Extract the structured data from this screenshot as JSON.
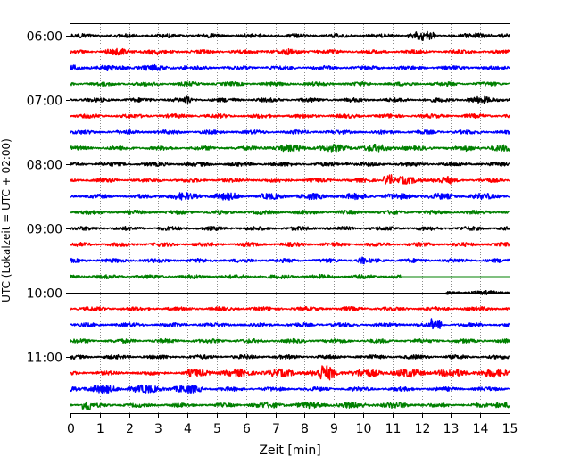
{
  "chart_data": {
    "type": "line",
    "chart_kind": "helicorder",
    "xlabel": "Zeit  [min]",
    "ylabel": "UTC (Lokalzeit = UTC + 02:00)",
    "xlim": [
      0,
      15
    ],
    "x_ticks": [
      0,
      1,
      2,
      3,
      4,
      5,
      6,
      7,
      8,
      9,
      10,
      11,
      12,
      13,
      14,
      15
    ],
    "y_time_ticks": [
      "06:00",
      "07:00",
      "08:00",
      "09:00",
      "10:00",
      "11:00"
    ],
    "grid": "vertical dotted lines at each minute",
    "trace_colors": [
      "#000000",
      "#ff0000",
      "#0000ff",
      "#008000"
    ],
    "rows": [
      {
        "time": "06:00",
        "color": "#000000",
        "x_start": 0,
        "x_end": 15
      },
      {
        "time": "06:15",
        "color": "#ff0000",
        "x_start": 0,
        "x_end": 15
      },
      {
        "time": "06:30",
        "color": "#0000ff",
        "x_start": 0,
        "x_end": 15
      },
      {
        "time": "06:45",
        "color": "#008000",
        "x_start": 0,
        "x_end": 15
      },
      {
        "time": "07:00",
        "color": "#000000",
        "x_start": 0,
        "x_end": 15
      },
      {
        "time": "07:15",
        "color": "#ff0000",
        "x_start": 0,
        "x_end": 15
      },
      {
        "time": "07:30",
        "color": "#0000ff",
        "x_start": 0,
        "x_end": 15
      },
      {
        "time": "07:45",
        "color": "#008000",
        "x_start": 0,
        "x_end": 15
      },
      {
        "time": "08:00",
        "color": "#000000",
        "x_start": 0,
        "x_end": 15
      },
      {
        "time": "08:15",
        "color": "#ff0000",
        "x_start": 0,
        "x_end": 15
      },
      {
        "time": "08:30",
        "color": "#0000ff",
        "x_start": 0,
        "x_end": 15
      },
      {
        "time": "08:45",
        "color": "#008000",
        "x_start": 0,
        "x_end": 15
      },
      {
        "time": "09:00",
        "color": "#000000",
        "x_start": 0,
        "x_end": 15
      },
      {
        "time": "09:15",
        "color": "#ff0000",
        "x_start": 0,
        "x_end": 15
      },
      {
        "time": "09:30",
        "color": "#0000ff",
        "x_start": 0,
        "x_end": 15
      },
      {
        "time": "09:45",
        "color": "#008000",
        "x_start": 0,
        "x_end": 11.3
      },
      {
        "time": "10:00",
        "color": "#000000",
        "x_start": 12.8,
        "x_end": 15
      },
      {
        "time": "10:15",
        "color": "#ff0000",
        "x_start": 0,
        "x_end": 15
      },
      {
        "time": "10:30",
        "color": "#0000ff",
        "x_start": 0,
        "x_end": 15
      },
      {
        "time": "10:45",
        "color": "#008000",
        "x_start": 0,
        "x_end": 15
      },
      {
        "time": "11:00",
        "color": "#000000",
        "x_start": 0,
        "x_end": 15
      },
      {
        "time": "11:15",
        "color": "#ff0000",
        "x_start": 0,
        "x_end": 15
      },
      {
        "time": "11:30",
        "color": "#0000ff",
        "x_start": 0,
        "x_end": 15
      },
      {
        "time": "11:45",
        "color": "#008000",
        "x_start": 0,
        "x_end": 15
      }
    ]
  }
}
